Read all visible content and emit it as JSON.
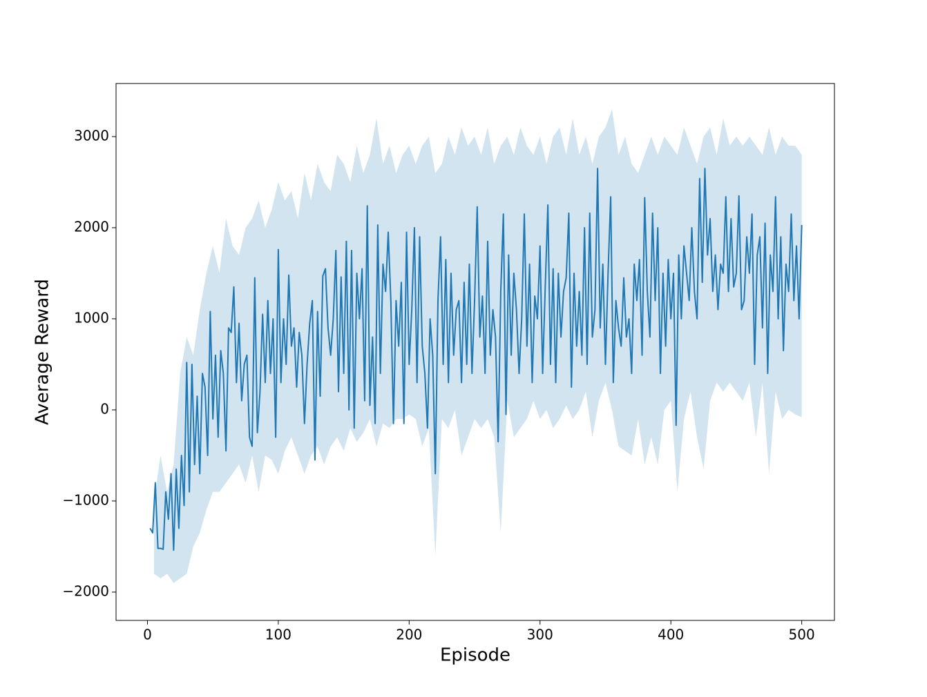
{
  "chart_data": {
    "type": "line",
    "xlabel": "Episode",
    "ylabel": "Average Reward",
    "xlim": [
      -24,
      525
    ],
    "ylim": [
      -2311,
      3583
    ],
    "xticks": [
      0,
      100,
      200,
      300,
      400,
      500
    ],
    "yticks": [
      {
        "value": -2000,
        "label": "−2000"
      },
      {
        "value": -1000,
        "label": "−1000"
      },
      0,
      1000,
      2000,
      3000
    ],
    "color": "#1f77b4",
    "x": [
      2,
      4,
      6,
      8,
      10,
      12,
      14,
      16,
      18,
      20,
      22,
      24,
      26,
      28,
      30,
      32,
      34,
      36,
      38,
      40,
      42,
      44,
      46,
      48,
      50,
      52,
      54,
      56,
      58,
      60,
      62,
      64,
      66,
      68,
      70,
      72,
      74,
      76,
      78,
      80,
      82,
      84,
      86,
      88,
      90,
      92,
      94,
      96,
      98,
      100,
      102,
      104,
      106,
      108,
      110,
      112,
      114,
      116,
      118,
      120,
      122,
      124,
      126,
      128,
      130,
      132,
      134,
      136,
      138,
      140,
      142,
      144,
      146,
      148,
      150,
      152,
      154,
      156,
      158,
      160,
      162,
      164,
      166,
      168,
      170,
      172,
      174,
      176,
      178,
      180,
      182,
      184,
      186,
      188,
      190,
      192,
      194,
      196,
      198,
      200,
      202,
      204,
      206,
      208,
      210,
      212,
      214,
      216,
      218,
      220,
      222,
      224,
      226,
      228,
      230,
      232,
      234,
      236,
      238,
      240,
      242,
      244,
      246,
      248,
      250,
      252,
      254,
      256,
      258,
      260,
      262,
      264,
      266,
      268,
      270,
      272,
      274,
      276,
      278,
      280,
      282,
      284,
      286,
      288,
      290,
      292,
      294,
      296,
      298,
      300,
      302,
      304,
      306,
      308,
      310,
      312,
      314,
      316,
      318,
      320,
      322,
      324,
      326,
      328,
      330,
      332,
      334,
      336,
      338,
      340,
      342,
      344,
      346,
      348,
      350,
      352,
      354,
      356,
      358,
      360,
      362,
      364,
      366,
      368,
      370,
      372,
      374,
      376,
      378,
      380,
      382,
      384,
      386,
      388,
      390,
      392,
      394,
      396,
      398,
      400,
      402,
      404,
      406,
      408,
      410,
      412,
      414,
      416,
      418,
      420,
      422,
      424,
      426,
      428,
      430,
      432,
      434,
      436,
      438,
      440,
      442,
      444,
      446,
      448,
      450,
      452,
      454,
      456,
      458,
      460,
      462,
      464,
      466,
      468,
      470,
      472,
      474,
      476,
      478,
      480,
      482,
      484,
      486,
      488,
      490,
      492,
      494,
      496,
      498,
      500
    ],
    "values": [
      -1300,
      -1350,
      -800,
      -1520,
      -1520,
      -1530,
      -900,
      -1200,
      -700,
      -1540,
      -650,
      -1300,
      -500,
      -1050,
      520,
      -900,
      500,
      -600,
      150,
      -700,
      400,
      250,
      -500,
      1080,
      -100,
      600,
      -300,
      650,
      400,
      -450,
      900,
      850,
      1350,
      300,
      950,
      100,
      500,
      600,
      -300,
      -400,
      1450,
      -250,
      200,
      1050,
      300,
      1200,
      400,
      1000,
      -300,
      1760,
      300,
      1000,
      500,
      1480,
      700,
      900,
      250,
      850,
      600,
      -150,
      500,
      950,
      1200,
      -550,
      1080,
      150,
      1470,
      1550,
      900,
      600,
      1000,
      1750,
      200,
      1460,
      400,
      1850,
      0,
      1750,
      -200,
      1500,
      1000,
      1550,
      100,
      2240,
      50,
      800,
      -150,
      2030,
      400,
      1600,
      1300,
      1950,
      1200,
      -150,
      1200,
      700,
      1400,
      -150,
      1950,
      500,
      1100,
      2000,
      300,
      1900,
      700,
      400,
      -200,
      1000,
      600,
      -700,
      1200,
      1900,
      500,
      1650,
      300,
      1500,
      600,
      1100,
      1200,
      300,
      1400,
      500,
      1600,
      400,
      1200,
      2230,
      800,
      1250,
      400,
      1850,
      600,
      1100,
      800,
      -350,
      1300,
      2150,
      -50,
      1700,
      600,
      1500,
      1100,
      400,
      1000,
      2150,
      700,
      1600,
      300,
      1250,
      1000,
      1800,
      400,
      1350,
      2250,
      500,
      1550,
      300,
      1500,
      800,
      1300,
      1450,
      2160,
      250,
      1500,
      700,
      1300,
      600,
      2000,
      500,
      2160,
      800,
      1100,
      2650,
      900,
      1600,
      500,
      1500,
      2340,
      300,
      1200,
      900,
      700,
      1450,
      800,
      1000,
      400,
      1600,
      1200,
      1650,
      600,
      2330,
      1300,
      800,
      2160,
      1200,
      2000,
      400,
      1500,
      700,
      1650,
      1000,
      1500,
      -170,
      1700,
      1000,
      1800,
      1500,
      1200,
      2000,
      1300,
      1000,
      2540,
      1400,
      2650,
      1700,
      2100,
      1300,
      1700,
      1100,
      1600,
      1500,
      2340,
      1300,
      2100,
      1350,
      1500,
      2350,
      1100,
      1200,
      1900,
      1500,
      2150,
      500,
      1700,
      1900,
      900,
      2050,
      400,
      1700,
      1300,
      2340,
      1000,
      1900,
      650,
      1600,
      1300,
      2150,
      1200,
      1800,
      1000,
      2030
    ],
    "band": {
      "color": "#1f77b4",
      "x": [
        5,
        10,
        15,
        20,
        25,
        30,
        35,
        40,
        45,
        50,
        55,
        60,
        65,
        70,
        75,
        80,
        85,
        90,
        95,
        100,
        105,
        110,
        115,
        120,
        125,
        130,
        135,
        140,
        145,
        150,
        155,
        160,
        165,
        170,
        175,
        180,
        185,
        190,
        195,
        200,
        205,
        210,
        215,
        220,
        225,
        230,
        235,
        240,
        245,
        250,
        255,
        260,
        265,
        270,
        275,
        280,
        285,
        290,
        295,
        300,
        305,
        310,
        315,
        320,
        325,
        330,
        335,
        340,
        345,
        350,
        355,
        360,
        365,
        370,
        375,
        380,
        385,
        390,
        395,
        400,
        405,
        410,
        415,
        420,
        425,
        430,
        435,
        440,
        445,
        450,
        455,
        460,
        465,
        470,
        475,
        480,
        485,
        490,
        495,
        500
      ],
      "lower": [
        -1800,
        -1850,
        -1800,
        -1900,
        -1850,
        -1800,
        -1500,
        -1350,
        -1100,
        -900,
        -900,
        -800,
        -700,
        -600,
        -800,
        -500,
        -900,
        -500,
        -550,
        -700,
        -450,
        -300,
        -500,
        -700,
        -500,
        -400,
        -600,
        -400,
        -300,
        -450,
        -200,
        -350,
        -250,
        -100,
        -400,
        -150,
        -200,
        -100,
        -100,
        -50,
        -100,
        -400,
        -200,
        -1600,
        -100,
        -200,
        0,
        -500,
        -300,
        -100,
        -200,
        -100,
        -300,
        -1350,
        100,
        -300,
        -200,
        -100,
        100,
        -100,
        0,
        -200,
        -100,
        50,
        -100,
        0,
        200,
        -300,
        100,
        300,
        0,
        -400,
        -450,
        -500,
        -100,
        -600,
        -300,
        -600,
        0,
        100,
        -900,
        -100,
        200,
        -300,
        -650,
        100,
        300,
        200,
        300,
        200,
        100,
        300,
        -300,
        300,
        -700,
        200,
        -100,
        0,
        -50,
        -80
      ],
      "upper": [
        -1000,
        -500,
        -900,
        -600,
        400,
        800,
        600,
        1100,
        1500,
        1800,
        1500,
        2100,
        1800,
        1700,
        2000,
        2100,
        2300,
        2000,
        2200,
        2500,
        2300,
        2400,
        2100,
        2600,
        2300,
        2700,
        2500,
        2400,
        2800,
        2700,
        2500,
        2900,
        2600,
        2800,
        3200,
        2700,
        2900,
        2600,
        2800,
        2900,
        2700,
        2900,
        3000,
        2600,
        2700,
        3000,
        2800,
        3100,
        2900,
        3000,
        2800,
        3100,
        2700,
        2900,
        3000,
        2800,
        3100,
        2900,
        2800,
        3000,
        2700,
        3000,
        3100,
        2800,
        3200,
        2800,
        3000,
        2700,
        3000,
        3100,
        3300,
        2800,
        3000,
        2700,
        2600,
        2800,
        3000,
        2800,
        3000,
        2900,
        2800,
        3100,
        2900,
        2700,
        3000,
        3100,
        2800,
        3200,
        2900,
        3000,
        2900,
        3000,
        2900,
        2800,
        3100,
        2800,
        3000,
        2900,
        2900,
        2800
      ]
    }
  }
}
